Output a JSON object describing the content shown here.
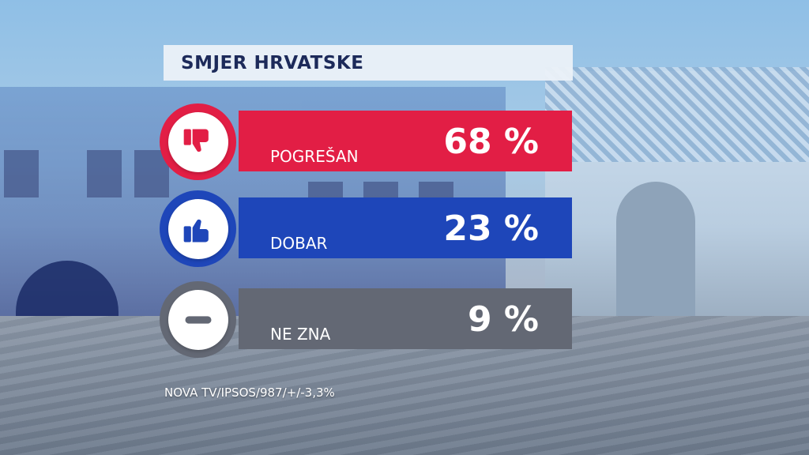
{
  "title": "SMJER HRVATSKE",
  "chart_data": {
    "type": "bar",
    "title": "SMJER HRVATSKE",
    "categories": [
      "POGREŠAN",
      "DOBAR",
      "NE ZNA"
    ],
    "values": [
      68,
      23,
      9
    ],
    "value_labels": [
      "68 %",
      "23 %",
      "9 %"
    ],
    "unit": "%",
    "icons": [
      "thumbs-down-icon",
      "thumbs-up-icon",
      "minus-icon"
    ],
    "colors": [
      "#e21e45",
      "#1e46b9",
      "#636874"
    ]
  },
  "rows": [
    {
      "label": "POGREŠAN",
      "value": "68 %"
    },
    {
      "label": "DOBAR",
      "value": "23 %"
    },
    {
      "label": "NE ZNA",
      "value": "9 %"
    }
  ],
  "source": "NOVA TV/IPSOS/987/+/-3,3%"
}
